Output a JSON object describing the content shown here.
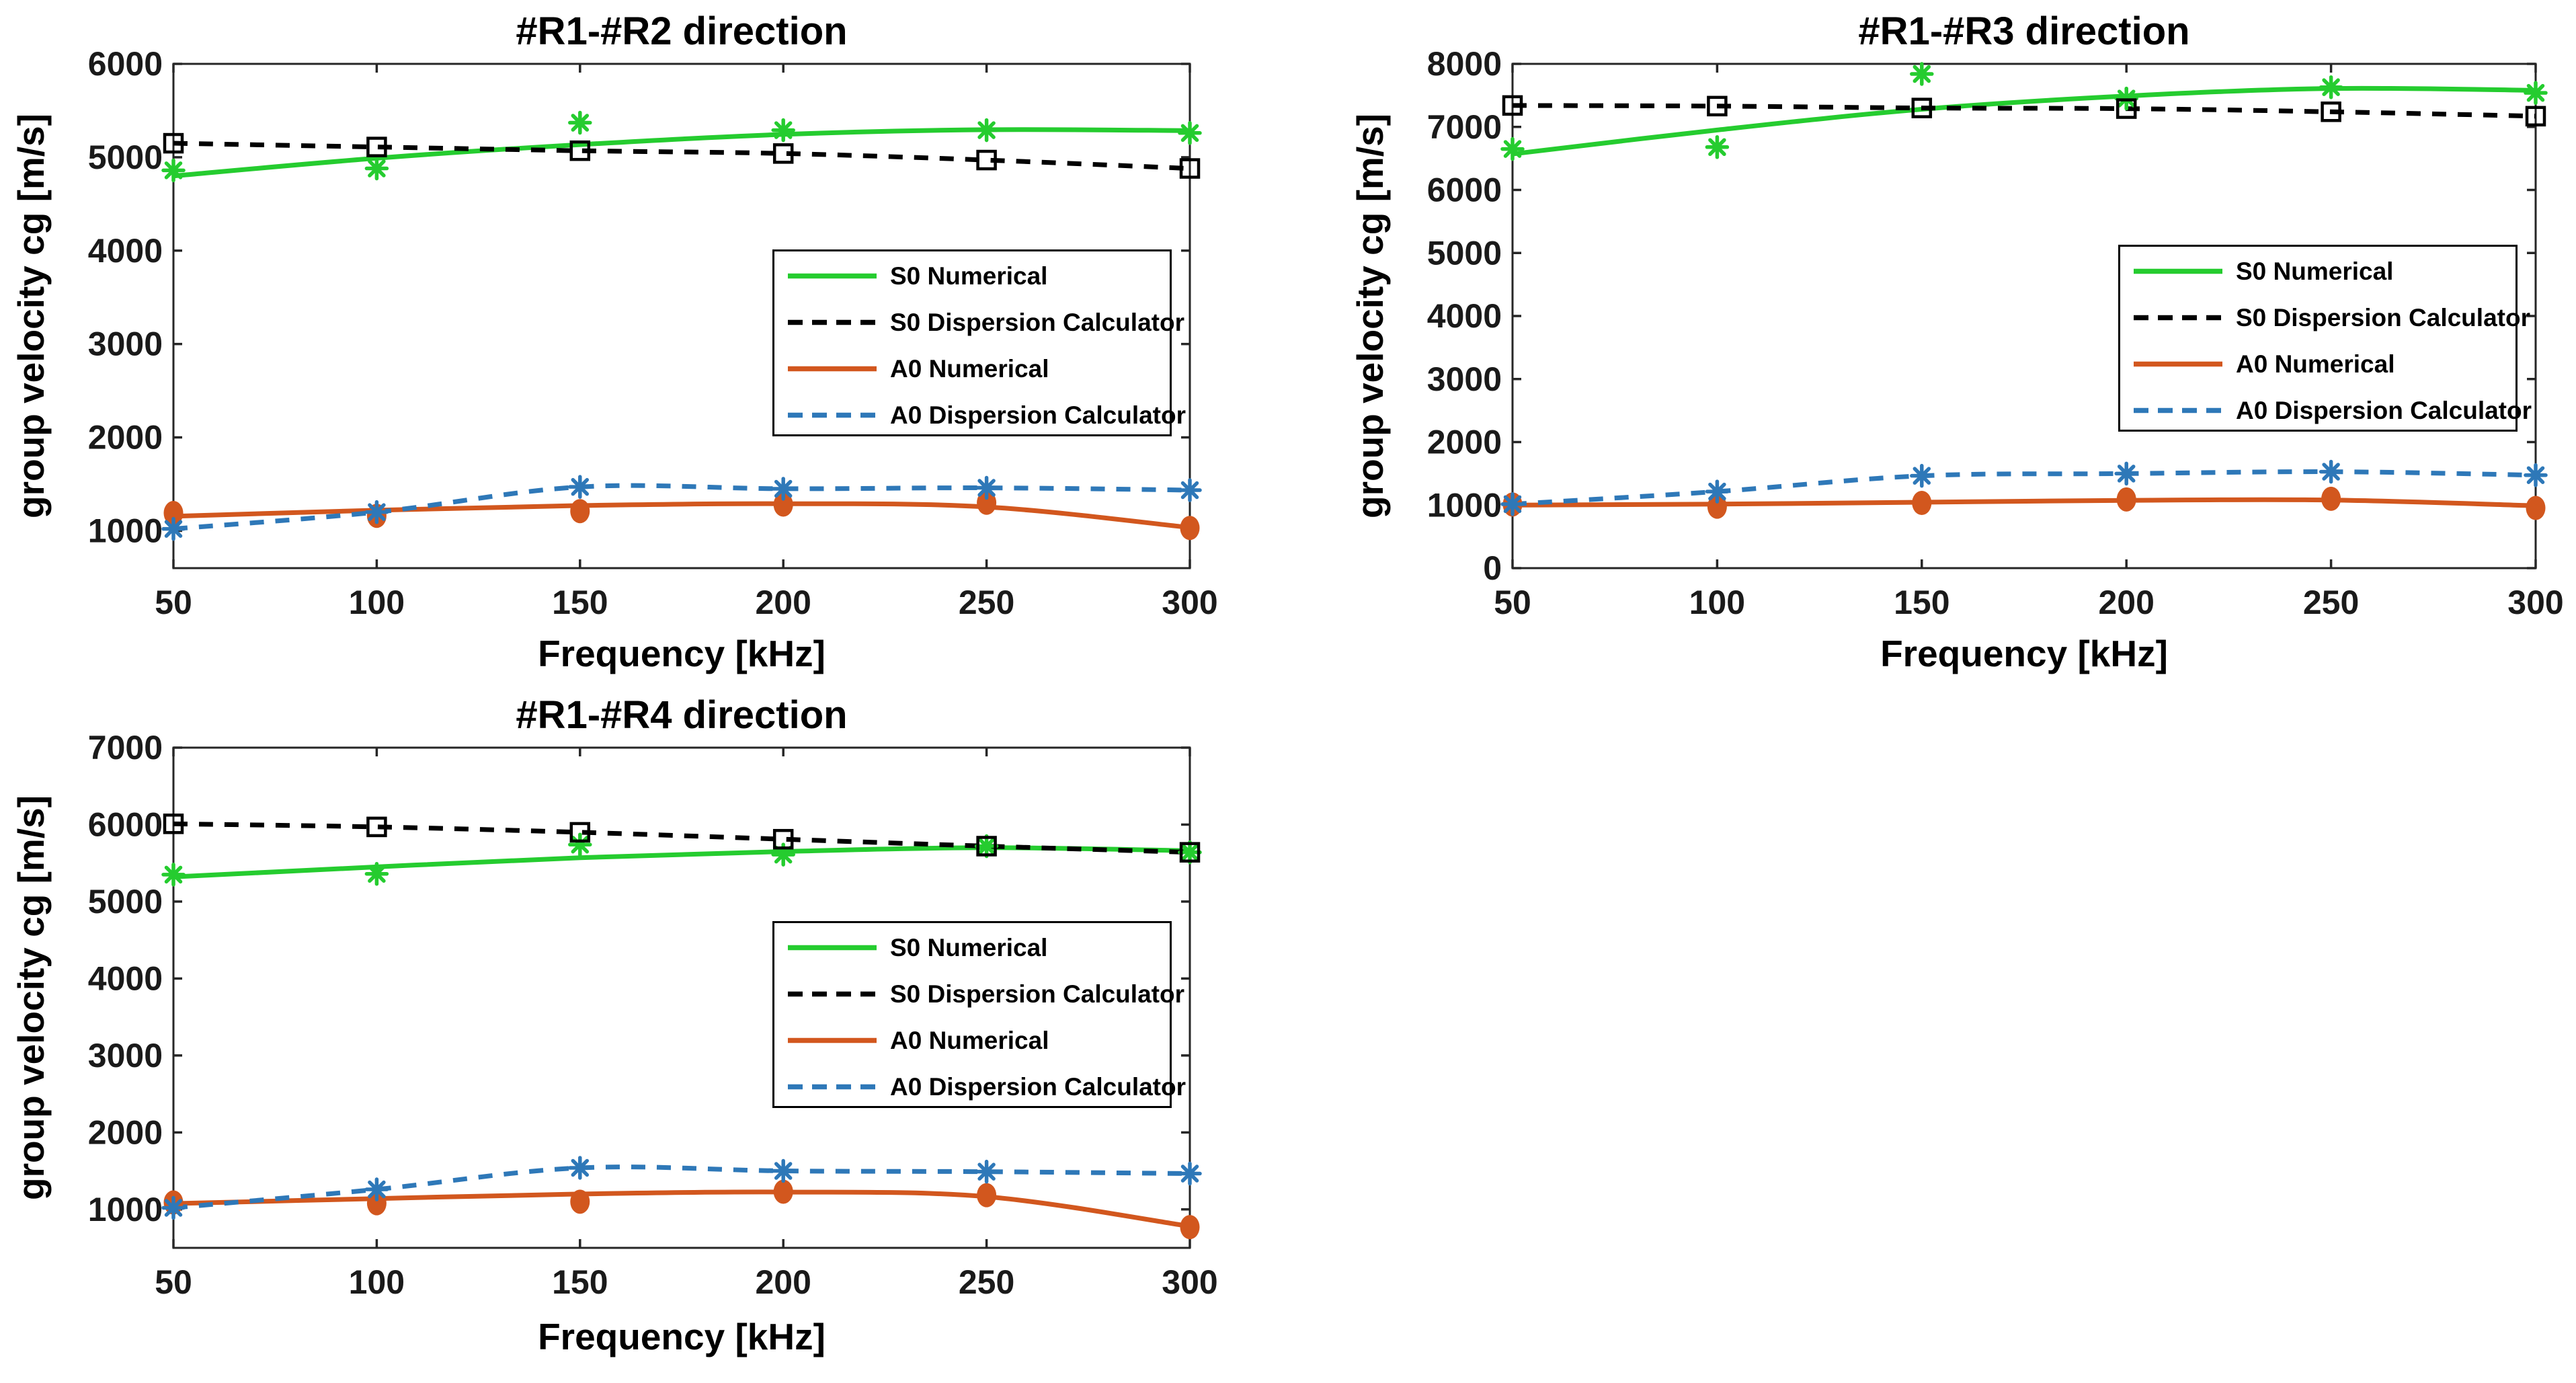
{
  "figure": {
    "background": "#ffffff",
    "axis_color": "#262626",
    "tick_label_color": "#1a1a1a"
  },
  "axis_labels": {
    "xlabel": "Frequency [kHz]",
    "ylabel": "group velocity cg [m/s]"
  },
  "series_colors": {
    "s0_numerical": "#25cc2f",
    "s0_dispersion_calculator": "#000000",
    "a0_numerical": "#d2571e",
    "a0_dispersion_calculator": "#2e78b8"
  },
  "chart_data": [
    {
      "type": "line",
      "title": "#R1-#R2 direction",
      "xlabel": "Frequency [kHz]",
      "ylabel": "group velocity cg [m/s]",
      "x": [
        50,
        100,
        150,
        200,
        250,
        300
      ],
      "xlim": [
        50,
        300
      ],
      "ylim": [
        600,
        6000
      ],
      "xticks": [
        50,
        100,
        150,
        200,
        250,
        300
      ],
      "yticks": [
        1000,
        2000,
        3000,
        4000,
        5000,
        6000
      ],
      "grid": false,
      "legend_position": "right-middle",
      "series": [
        {
          "name": "S0 Numerical",
          "color_key": "s0_numerical",
          "line_style": "solid",
          "marker": "asterisk",
          "marker_values": [
            4860,
            4880,
            5370,
            5290,
            5290,
            5260
          ],
          "line_values": [
            4800,
            4990,
            5135,
            5245,
            5295,
            5285
          ]
        },
        {
          "name": "S0 Dispersion Calculator",
          "color_key": "s0_dispersion_calculator",
          "line_style": "dashed",
          "marker": "open-square",
          "marker_values": [
            5150,
            5110,
            5070,
            5040,
            4970,
            4880
          ],
          "line_values": [
            5150,
            5110,
            5070,
            5040,
            4970,
            4880
          ]
        },
        {
          "name": "A0 Numerical",
          "color_key": "a0_numerical",
          "line_style": "solid",
          "marker": "filled-circle",
          "marker_values": [
            1190,
            1160,
            1210,
            1280,
            1300,
            1030
          ],
          "line_values": [
            1155,
            1220,
            1270,
            1290,
            1255,
            1035
          ]
        },
        {
          "name": "A0 Dispersion Calculator",
          "color_key": "a0_dispersion_calculator",
          "line_style": "dashed",
          "marker": "asterisk",
          "marker_values": [
            1020,
            1200,
            1470,
            1450,
            1460,
            1435
          ],
          "line_values": [
            1020,
            1200,
            1470,
            1450,
            1460,
            1435
          ]
        }
      ]
    },
    {
      "type": "line",
      "title": "#R1-#R3 direction",
      "xlabel": "Frequency [kHz]",
      "ylabel": "group velocity cg [m/s]",
      "x": [
        50,
        100,
        150,
        200,
        250,
        300
      ],
      "xlim": [
        50,
        300
      ],
      "ylim": [
        0,
        8000
      ],
      "xticks": [
        50,
        100,
        150,
        200,
        250,
        300
      ],
      "yticks": [
        0,
        1000,
        2000,
        3000,
        4000,
        5000,
        6000,
        7000,
        8000
      ],
      "grid": false,
      "legend_position": "right-middle",
      "series": [
        {
          "name": "S0 Numerical",
          "color_key": "s0_numerical",
          "line_style": "solid",
          "marker": "asterisk",
          "marker_values": [
            6650,
            6680,
            7840,
            7450,
            7630,
            7540
          ],
          "line_values": [
            6570,
            6950,
            7280,
            7490,
            7610,
            7580
          ]
        },
        {
          "name": "S0 Dispersion Calculator",
          "color_key": "s0_dispersion_calculator",
          "line_style": "dashed",
          "marker": "open-square",
          "marker_values": [
            7340,
            7330,
            7300,
            7290,
            7240,
            7170
          ],
          "line_values": [
            7340,
            7330,
            7300,
            7290,
            7240,
            7170
          ]
        },
        {
          "name": "A0 Numerical",
          "color_key": "a0_numerical",
          "line_style": "solid",
          "marker": "filled-circle",
          "marker_values": [
            1010,
            975,
            1035,
            1090,
            1100,
            955
          ],
          "line_values": [
            1000,
            1015,
            1045,
            1075,
            1080,
            990
          ]
        },
        {
          "name": "A0 Dispersion Calculator",
          "color_key": "a0_dispersion_calculator",
          "line_style": "dashed",
          "marker": "asterisk",
          "marker_values": [
            1015,
            1215,
            1465,
            1500,
            1530,
            1475
          ],
          "line_values": [
            1015,
            1215,
            1465,
            1500,
            1530,
            1475
          ]
        }
      ]
    },
    {
      "type": "line",
      "title": "#R1-#R4 direction",
      "xlabel": "Frequency [kHz]",
      "ylabel": "group velocity cg [m/s]",
      "x": [
        50,
        100,
        150,
        200,
        250,
        300
      ],
      "xlim": [
        50,
        300
      ],
      "ylim": [
        500,
        7000
      ],
      "xticks": [
        50,
        100,
        150,
        200,
        250,
        300
      ],
      "yticks": [
        1000,
        2000,
        3000,
        4000,
        5000,
        6000,
        7000
      ],
      "grid": false,
      "legend_position": "right-middle",
      "series": [
        {
          "name": "S0 Numerical",
          "color_key": "s0_numerical",
          "line_style": "solid",
          "marker": "asterisk",
          "marker_values": [
            5350,
            5360,
            5740,
            5610,
            5720,
            5640
          ],
          "line_values": [
            5320,
            5450,
            5570,
            5650,
            5700,
            5660
          ]
        },
        {
          "name": "S0 Dispersion Calculator",
          "color_key": "s0_dispersion_calculator",
          "line_style": "dashed",
          "marker": "open-square",
          "marker_values": [
            6010,
            5970,
            5900,
            5810,
            5720,
            5640
          ],
          "line_values": [
            6010,
            5970,
            5900,
            5810,
            5720,
            5640
          ]
        },
        {
          "name": "A0 Numerical",
          "color_key": "a0_numerical",
          "line_style": "solid",
          "marker": "filled-circle",
          "marker_values": [
            1090,
            1080,
            1100,
            1230,
            1185,
            770
          ],
          "line_values": [
            1075,
            1140,
            1200,
            1225,
            1165,
            780
          ]
        },
        {
          "name": "A0 Dispersion Calculator",
          "color_key": "a0_dispersion_calculator",
          "line_style": "dashed",
          "marker": "asterisk",
          "marker_values": [
            1020,
            1260,
            1540,
            1500,
            1490,
            1465
          ],
          "line_values": [
            1020,
            1260,
            1540,
            1500,
            1490,
            1465
          ]
        }
      ]
    }
  ]
}
